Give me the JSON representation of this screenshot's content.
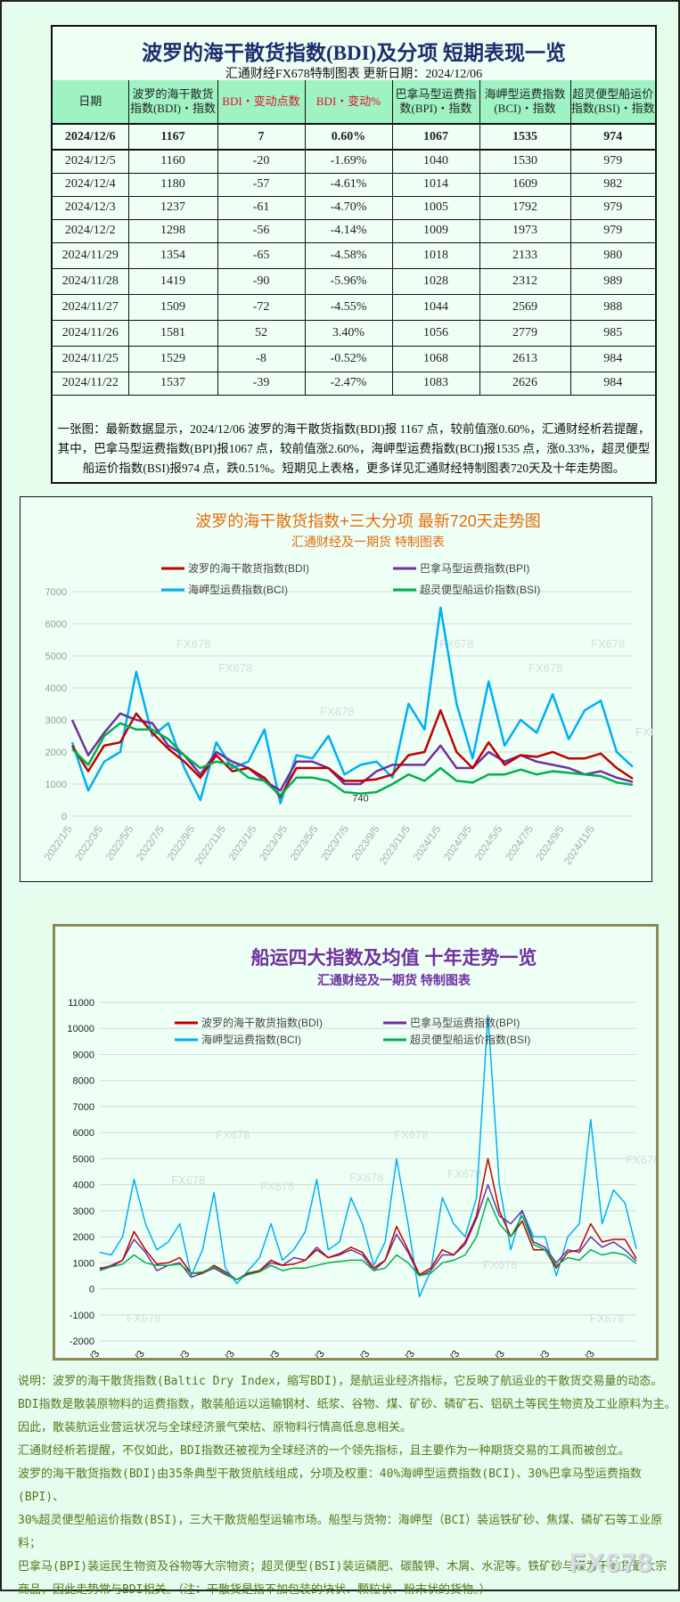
{
  "table": {
    "title": "波罗的海干散货指数(BDI)及分项  短期表现一览",
    "subtitle": "汇通财经FX678特制图表     更新日期：2024/12/06",
    "headers": [
      "日期",
      "波罗的海干散货指数(BDI)・指数",
      "BDI・变动点数",
      "BDI・变动%",
      "巴拿马型运费指数(BPI)・指数",
      "海岬型运费指数(BCI)・指数",
      "超灵便型船运价指数(BSI)・指数"
    ],
    "rows": [
      [
        "2024/12/6",
        "1167",
        "7",
        "0.60%",
        "1067",
        "1535",
        "974"
      ],
      [
        "2024/12/5",
        "1160",
        "-20",
        "-1.69%",
        "1040",
        "1530",
        "979"
      ],
      [
        "2024/12/4",
        "1180",
        "-57",
        "-4.61%",
        "1014",
        "1609",
        "982"
      ],
      [
        "2024/12/3",
        "1237",
        "-61",
        "-4.70%",
        "1005",
        "1792",
        "979"
      ],
      [
        "2024/12/2",
        "1298",
        "-56",
        "-4.14%",
        "1009",
        "1973",
        "979"
      ],
      [
        "2024/11/29",
        "1354",
        "-65",
        "-4.58%",
        "1018",
        "2133",
        "980"
      ],
      [
        "2024/11/28",
        "1419",
        "-90",
        "-5.96%",
        "1028",
        "2312",
        "989"
      ],
      [
        "2024/11/27",
        "1509",
        "-72",
        "-4.55%",
        "1044",
        "2569",
        "988"
      ],
      [
        "2024/11/26",
        "1581",
        "52",
        "3.40%",
        "1056",
        "2779",
        "985"
      ],
      [
        "2024/11/25",
        "1529",
        "-8",
        "-0.52%",
        "1068",
        "2613",
        "984"
      ],
      [
        "2024/11/22",
        "1537",
        "-39",
        "-2.47%",
        "1083",
        "2626",
        "984"
      ]
    ],
    "note": "一张图：最新数据显示，2024/12/06 波罗的海干散货指数(BDI)报 1167 点，较前值涨0.60%，汇通财经析若提醒，其中，巴拿马型运费指数(BPI)报1067 点，较前值涨2.60%，海岬型运费指数(BCI)报1535 点，涨0.33%，超灵便型船运价指数(BSI)报974 点，跌0.51%。短期见上表格，更多详见汇通财经特制图表720天及十年走势图。"
  },
  "colors": {
    "BDI": "#c00000",
    "BPI": "#7030a0",
    "BCI": "#00b0f0",
    "BSI": "#00b050"
  },
  "chart_data": [
    {
      "type": "line",
      "title": "波罗的海干散货指数+三大分项  最新720天走势图",
      "subtitle": "汇通财经及一期货  特制图表",
      "ylim": [
        0,
        7000
      ],
      "yticks": [
        0,
        1000,
        2000,
        3000,
        4000,
        5000,
        6000,
        7000
      ],
      "grid": true,
      "legend": "top",
      "xticks": [
        "2022/1/5",
        "2022/3/5",
        "2022/5/5",
        "2022/7/5",
        "2022/9/5",
        "2022/11/5",
        "2023/1/5",
        "2023/3/5",
        "2023/5/5",
        "2023/7/5",
        "2023/9/5",
        "2023/11/5",
        "2024/1/5",
        "2024/3/5",
        "2024/5/5",
        "2024/7/5",
        "2024/9/5",
        "2024/11/5"
      ],
      "x": [
        "2022/1/5",
        "2022/2/5",
        "2022/3/5",
        "2022/4/5",
        "2022/5/5",
        "2022/6/5",
        "2022/7/5",
        "2022/8/5",
        "2022/9/5",
        "2022/10/5",
        "2022/11/5",
        "2022/12/5",
        "2023/1/5",
        "2023/2/5",
        "2023/3/5",
        "2023/4/5",
        "2023/5/5",
        "2023/6/5",
        "2023/7/5",
        "2023/8/5",
        "2023/9/5",
        "2023/10/5",
        "2023/11/5",
        "2023/12/5",
        "2024/1/5",
        "2024/2/5",
        "2024/3/5",
        "2024/4/5",
        "2024/5/5",
        "2024/6/5",
        "2024/7/5",
        "2024/8/5",
        "2024/9/5",
        "2024/10/5",
        "2024/11/5",
        "2024/12/6"
      ],
      "series": [
        {
          "name": "波罗的海干散货指数(BDI)",
          "key": "BDI",
          "values": [
            2200,
            1400,
            2200,
            2300,
            3200,
            2600,
            2100,
            1700,
            1200,
            1900,
            1400,
            1500,
            1200,
            600,
            1500,
            1500,
            1500,
            1100,
            1100,
            1150,
            1300,
            1900,
            2000,
            3300,
            2000,
            1500,
            2300,
            1600,
            1900,
            1850,
            2000,
            1800,
            1800,
            1950,
            1500,
            1167
          ]
        },
        {
          "name": "巴拿马型运费指数(BPI)",
          "key": "BPI",
          "values": [
            3000,
            1900,
            2600,
            3200,
            3000,
            2900,
            2200,
            1900,
            1300,
            2000,
            1700,
            1500,
            1100,
            800,
            1700,
            1700,
            1500,
            1000,
            1000,
            1400,
            1600,
            1600,
            1600,
            2200,
            1500,
            1500,
            2000,
            1700,
            1900,
            1700,
            1600,
            1500,
            1300,
            1400,
            1200,
            1067
          ]
        },
        {
          "name": "海岬型运费指数(BCI)",
          "key": "BCI",
          "values": [
            2300,
            800,
            1700,
            2000,
            4500,
            2500,
            2900,
            1500,
            500,
            2300,
            1500,
            1700,
            2700,
            400,
            1900,
            1800,
            2500,
            1300,
            1600,
            1700,
            1200,
            3500,
            2700,
            6500,
            3500,
            1800,
            4200,
            2200,
            3000,
            2600,
            3800,
            2400,
            3300,
            3600,
            2000,
            1535
          ]
        },
        {
          "name": "超灵便型船运价指数(BSI)",
          "key": "BSI",
          "values": [
            2100,
            1600,
            2500,
            2900,
            2700,
            2700,
            2400,
            1900,
            1500,
            1700,
            1600,
            1200,
            1100,
            650,
            1200,
            1200,
            1100,
            750,
            700,
            750,
            1000,
            1300,
            1100,
            1500,
            1100,
            1050,
            1300,
            1300,
            1450,
            1300,
            1400,
            1350,
            1300,
            1250,
            1050,
            974
          ]
        }
      ],
      "annotations": [
        {
          "x": "2023/7/5",
          "y": 740,
          "text": "740"
        }
      ],
      "watermark": "FX678"
    },
    {
      "type": "line",
      "title": "船运四大指数及均值 十年走势一览",
      "subtitle": "汇通财经及一期货 特制图表",
      "ylim": [
        -2000,
        11000
      ],
      "yticks": [
        -2000,
        -1000,
        0,
        1000,
        2000,
        3000,
        4000,
        5000,
        6000,
        7000,
        8000,
        9000,
        10000,
        11000
      ],
      "grid": true,
      "legend": "top",
      "xticks": [
        "2013/1/3",
        "2014/1/3",
        "2015/1/3",
        "2016/1/3",
        "2017/1/3",
        "2018/1/3",
        "2019/1/3",
        "2020/1/3",
        "2021/1/3",
        "2022/1/3",
        "2023/1/3",
        "2024/1/3"
      ],
      "x": [
        "2013Q1",
        "2013Q2",
        "2013Q3",
        "2013Q4",
        "2014Q1",
        "2014Q2",
        "2014Q3",
        "2014Q4",
        "2015Q1",
        "2015Q2",
        "2015Q3",
        "2015Q4",
        "2016Q1",
        "2016Q2",
        "2016Q3",
        "2016Q4",
        "2017Q1",
        "2017Q2",
        "2017Q3",
        "2017Q4",
        "2018Q1",
        "2018Q2",
        "2018Q3",
        "2018Q4",
        "2019Q1",
        "2019Q2",
        "2019Q3",
        "2019Q4",
        "2020Q1",
        "2020Q2",
        "2020Q3",
        "2020Q4",
        "2021Q1",
        "2021Q2",
        "2021Q3",
        "2021Q4",
        "2022Q1",
        "2022Q2",
        "2022Q3",
        "2022Q4",
        "2023Q1",
        "2023Q2",
        "2023Q3",
        "2023Q4",
        "2024Q1",
        "2024Q2",
        "2024Q3",
        "2024Q4"
      ],
      "series": [
        {
          "name": "波罗的海干散货指数(BDI)",
          "key": "BDI",
          "values": [
            800,
            850,
            1100,
            2200,
            1500,
            950,
            1000,
            1200,
            600,
            600,
            900,
            650,
            350,
            600,
            700,
            1100,
            900,
            950,
            1100,
            1500,
            1200,
            1350,
            1600,
            1400,
            800,
            1100,
            2400,
            1500,
            550,
            800,
            1500,
            1300,
            1800,
            2800,
            5000,
            3000,
            2000,
            2600,
            1500,
            1500,
            800,
            1400,
            1500,
            2500,
            1800,
            1900,
            1900,
            1167
          ]
        },
        {
          "name": "巴拿马型运费指数(BPI)",
          "key": "BPI",
          "values": [
            750,
            900,
            1100,
            1900,
            1400,
            700,
            900,
            1000,
            450,
            600,
            800,
            550,
            350,
            600,
            700,
            1000,
            900,
            1200,
            1100,
            1600,
            1200,
            1300,
            1500,
            1300,
            700,
            1100,
            2100,
            1400,
            500,
            700,
            1300,
            1300,
            1700,
            2700,
            4000,
            2800,
            2500,
            3000,
            1800,
            1600,
            1000,
            1500,
            1400,
            2000,
            1600,
            1800,
            1500,
            1067
          ]
        },
        {
          "name": "海岬型运费指数(BCI)",
          "key": "BCI",
          "values": [
            1400,
            1300,
            2000,
            4200,
            2500,
            1500,
            1800,
            2500,
            500,
            1500,
            3700,
            800,
            200,
            700,
            1200,
            2500,
            1100,
            1500,
            2200,
            4200,
            1500,
            1800,
            3500,
            2500,
            900,
            1800,
            5000,
            2500,
            -300,
            700,
            3500,
            2500,
            2000,
            3500,
            10500,
            4000,
            1500,
            3000,
            2000,
            2000,
            500,
            2000,
            2500,
            6500,
            2500,
            3800,
            3300,
            1535
          ]
        },
        {
          "name": "超灵便型船运价指数(BSI)",
          "key": "BSI",
          "values": [
            700,
            850,
            950,
            1300,
            1000,
            900,
            900,
            950,
            600,
            650,
            850,
            600,
            350,
            550,
            650,
            900,
            700,
            800,
            800,
            900,
            1000,
            1050,
            1100,
            1100,
            700,
            800,
            1300,
            1000,
            500,
            600,
            1000,
            1100,
            1300,
            2000,
            3500,
            2500,
            2000,
            2800,
            1700,
            1500,
            900,
            1200,
            1100,
            1500,
            1300,
            1400,
            1300,
            974
          ]
        }
      ],
      "watermark": "FX678"
    }
  ],
  "description": [
    "说明：波罗的海干散货指数(Baltic Dry Index，缩写BDI)，是航运业经济指标，它反映了航运业的干散货交易量的动态。",
    "BDI指数是散装原物料的运费指数，散装船运以运输钢材、纸浆、谷物、煤、矿砂、磷矿石、铝矾土等民生物资及工业原料为主。",
    "因此，散装航运业营运状况与全球经济景气荣枯、原物料行情高低息息相关。",
    "汇通财经析若提醒，不仅如此，BDI指数还被视为全球经济的一个领先指标，且主要作为一种期货交易的工具而被创立。",
    "波罗的海干散货指数(BDI)由35条典型干散货航线组成，分项及权重：40%海岬型运费指数(BCI)、30%巴拿马型运费指数(BPI)、",
    "30%超灵便型船运价指数(BSI)，三大干散货船型运输市场。船型与货物：海岬型（BCI）装运铁矿砂、焦煤、磷矿石等工业原料；",
    "巴拿马(BPI)装运民生物资及谷物等大宗物资；超灵便型(BSI)装运磷肥、碳酸钾、木屑、水泥等。铁矿砂与煤为干散货最大宗",
    "商品，因此走势常与BDI相关。（注：干散货是指不加包装的块状、颗粒状、粉末状的货物。）"
  ],
  "logo": "FX678"
}
